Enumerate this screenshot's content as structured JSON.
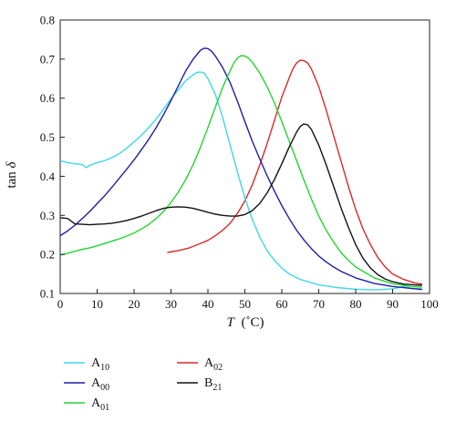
{
  "chart_data": {
    "type": "line",
    "title": "",
    "xlabel": {
      "main": "T",
      "unit": "(˚C)"
    },
    "ylabel": {
      "main": "tan",
      "symbol": "δ"
    },
    "xlim": [
      0,
      100
    ],
    "ylim": [
      0.1,
      0.8
    ],
    "xticks": [
      "0",
      "10",
      "20",
      "30",
      "40",
      "50",
      "60",
      "70",
      "80",
      "90",
      "100"
    ],
    "yticks": [
      "0.1",
      "0.2",
      "0.3",
      "0.4",
      "0.5",
      "0.6",
      "0.7",
      "0.8"
    ],
    "grid": false,
    "legend_position": "bottom",
    "series": [
      {
        "name": "A10",
        "name_base": "A",
        "name_sub": "10",
        "color": "#3fd7e6",
        "points": [
          [
            0,
            0.44
          ],
          [
            2,
            0.435
          ],
          [
            4,
            0.432
          ],
          [
            6,
            0.43
          ],
          [
            7,
            0.422
          ],
          [
            8,
            0.428
          ],
          [
            10,
            0.435
          ],
          [
            12,
            0.44
          ],
          [
            14,
            0.448
          ],
          [
            16,
            0.458
          ],
          [
            18,
            0.472
          ],
          [
            20,
            0.488
          ],
          [
            22,
            0.505
          ],
          [
            24,
            0.525
          ],
          [
            26,
            0.547
          ],
          [
            28,
            0.572
          ],
          [
            30,
            0.598
          ],
          [
            32,
            0.622
          ],
          [
            34,
            0.645
          ],
          [
            36,
            0.66
          ],
          [
            37,
            0.666
          ],
          [
            38,
            0.667
          ],
          [
            39,
            0.664
          ],
          [
            40,
            0.65
          ],
          [
            42,
            0.61
          ],
          [
            44,
            0.55
          ],
          [
            46,
            0.48
          ],
          [
            48,
            0.41
          ],
          [
            50,
            0.345
          ],
          [
            52,
            0.29
          ],
          [
            54,
            0.245
          ],
          [
            56,
            0.21
          ],
          [
            58,
            0.185
          ],
          [
            60,
            0.165
          ],
          [
            62,
            0.15
          ],
          [
            65,
            0.136
          ],
          [
            70,
            0.122
          ],
          [
            75,
            0.115
          ],
          [
            80,
            0.111
          ],
          [
            85,
            0.109
          ],
          [
            90,
            0.112
          ],
          [
            93,
            0.118
          ],
          [
            95,
            0.113
          ],
          [
            98,
            0.112
          ]
        ]
      },
      {
        "name": "A00",
        "name_base": "A",
        "name_sub": "00",
        "color": "#1f1fa8",
        "points": [
          [
            0,
            0.248
          ],
          [
            2,
            0.26
          ],
          [
            4,
            0.275
          ],
          [
            6,
            0.292
          ],
          [
            8,
            0.31
          ],
          [
            10,
            0.33
          ],
          [
            12,
            0.35
          ],
          [
            14,
            0.372
          ],
          [
            16,
            0.395
          ],
          [
            18,
            0.418
          ],
          [
            20,
            0.442
          ],
          [
            22,
            0.468
          ],
          [
            24,
            0.495
          ],
          [
            26,
            0.525
          ],
          [
            28,
            0.558
          ],
          [
            30,
            0.594
          ],
          [
            32,
            0.632
          ],
          [
            34,
            0.67
          ],
          [
            36,
            0.7
          ],
          [
            38,
            0.723
          ],
          [
            39,
            0.728
          ],
          [
            40,
            0.727
          ],
          [
            41,
            0.72
          ],
          [
            42,
            0.708
          ],
          [
            44,
            0.678
          ],
          [
            46,
            0.64
          ],
          [
            48,
            0.592
          ],
          [
            50,
            0.54
          ],
          [
            52,
            0.49
          ],
          [
            54,
            0.445
          ],
          [
            56,
            0.402
          ],
          [
            58,
            0.362
          ],
          [
            60,
            0.325
          ],
          [
            62,
            0.292
          ],
          [
            64,
            0.262
          ],
          [
            66,
            0.237
          ],
          [
            68,
            0.215
          ],
          [
            70,
            0.196
          ],
          [
            72,
            0.181
          ],
          [
            74,
            0.168
          ],
          [
            76,
            0.157
          ],
          [
            80,
            0.14
          ],
          [
            85,
            0.126
          ],
          [
            90,
            0.118
          ],
          [
            95,
            0.113
          ],
          [
            98,
            0.11
          ]
        ]
      },
      {
        "name": "A01",
        "name_base": "A",
        "name_sub": "01",
        "color": "#22d630",
        "points": [
          [
            0,
            0.198
          ],
          [
            2,
            0.203
          ],
          [
            4,
            0.208
          ],
          [
            6,
            0.213
          ],
          [
            8,
            0.217
          ],
          [
            10,
            0.222
          ],
          [
            12,
            0.228
          ],
          [
            14,
            0.234
          ],
          [
            16,
            0.24
          ],
          [
            18,
            0.247
          ],
          [
            20,
            0.255
          ],
          [
            22,
            0.265
          ],
          [
            24,
            0.277
          ],
          [
            26,
            0.292
          ],
          [
            28,
            0.31
          ],
          [
            30,
            0.333
          ],
          [
            32,
            0.36
          ],
          [
            34,
            0.392
          ],
          [
            36,
            0.43
          ],
          [
            38,
            0.475
          ],
          [
            40,
            0.525
          ],
          [
            42,
            0.577
          ],
          [
            44,
            0.628
          ],
          [
            46,
            0.67
          ],
          [
            47,
            0.69
          ],
          [
            48,
            0.703
          ],
          [
            49,
            0.709
          ],
          [
            50,
            0.708
          ],
          [
            51,
            0.702
          ],
          [
            52,
            0.692
          ],
          [
            54,
            0.665
          ],
          [
            56,
            0.63
          ],
          [
            58,
            0.588
          ],
          [
            60,
            0.54
          ],
          [
            62,
            0.49
          ],
          [
            64,
            0.44
          ],
          [
            66,
            0.39
          ],
          [
            68,
            0.342
          ],
          [
            70,
            0.298
          ],
          [
            72,
            0.262
          ],
          [
            74,
            0.232
          ],
          [
            76,
            0.205
          ],
          [
            78,
            0.185
          ],
          [
            80,
            0.168
          ],
          [
            85,
            0.14
          ],
          [
            90,
            0.125
          ],
          [
            95,
            0.118
          ],
          [
            98,
            0.116
          ]
        ]
      },
      {
        "name": "A02",
        "name_base": "A",
        "name_sub": "02",
        "color": "#d62a2a",
        "points": [
          [
            29,
            0.205
          ],
          [
            32,
            0.21
          ],
          [
            35,
            0.217
          ],
          [
            38,
            0.228
          ],
          [
            40,
            0.236
          ],
          [
            42,
            0.248
          ],
          [
            44,
            0.262
          ],
          [
            46,
            0.28
          ],
          [
            48,
            0.305
          ],
          [
            50,
            0.337
          ],
          [
            52,
            0.378
          ],
          [
            54,
            0.428
          ],
          [
            56,
            0.483
          ],
          [
            58,
            0.543
          ],
          [
            60,
            0.603
          ],
          [
            62,
            0.652
          ],
          [
            63,
            0.675
          ],
          [
            64,
            0.69
          ],
          [
            65,
            0.697
          ],
          [
            66,
            0.696
          ],
          [
            67,
            0.69
          ],
          [
            68,
            0.675
          ],
          [
            70,
            0.63
          ],
          [
            72,
            0.57
          ],
          [
            74,
            0.505
          ],
          [
            76,
            0.44
          ],
          [
            78,
            0.375
          ],
          [
            80,
            0.315
          ],
          [
            82,
            0.265
          ],
          [
            84,
            0.225
          ],
          [
            86,
            0.192
          ],
          [
            88,
            0.168
          ],
          [
            90,
            0.15
          ],
          [
            93,
            0.136
          ],
          [
            96,
            0.127
          ],
          [
            98,
            0.124
          ]
        ]
      },
      {
        "name": "B21",
        "name_base": "B",
        "name_sub": "21",
        "color": "#111111",
        "points": [
          [
            0,
            0.294
          ],
          [
            2,
            0.292
          ],
          [
            3,
            0.285
          ],
          [
            4,
            0.278
          ],
          [
            6,
            0.277
          ],
          [
            8,
            0.276
          ],
          [
            10,
            0.277
          ],
          [
            12,
            0.278
          ],
          [
            14,
            0.28
          ],
          [
            16,
            0.283
          ],
          [
            18,
            0.287
          ],
          [
            20,
            0.292
          ],
          [
            22,
            0.298
          ],
          [
            24,
            0.305
          ],
          [
            26,
            0.312
          ],
          [
            28,
            0.318
          ],
          [
            30,
            0.321
          ],
          [
            32,
            0.322
          ],
          [
            34,
            0.321
          ],
          [
            36,
            0.318
          ],
          [
            38,
            0.313
          ],
          [
            40,
            0.308
          ],
          [
            42,
            0.303
          ],
          [
            44,
            0.3
          ],
          [
            46,
            0.298
          ],
          [
            48,
            0.298
          ],
          [
            50,
            0.302
          ],
          [
            52,
            0.312
          ],
          [
            54,
            0.33
          ],
          [
            56,
            0.357
          ],
          [
            58,
            0.392
          ],
          [
            60,
            0.432
          ],
          [
            62,
            0.475
          ],
          [
            64,
            0.513
          ],
          [
            65,
            0.528
          ],
          [
            66,
            0.534
          ],
          [
            67,
            0.532
          ],
          [
            68,
            0.52
          ],
          [
            70,
            0.48
          ],
          [
            72,
            0.43
          ],
          [
            74,
            0.375
          ],
          [
            76,
            0.32
          ],
          [
            78,
            0.27
          ],
          [
            80,
            0.225
          ],
          [
            82,
            0.19
          ],
          [
            84,
            0.165
          ],
          [
            86,
            0.148
          ],
          [
            88,
            0.137
          ],
          [
            90,
            0.13
          ],
          [
            93,
            0.124
          ],
          [
            96,
            0.122
          ],
          [
            98,
            0.121
          ]
        ]
      }
    ]
  }
}
